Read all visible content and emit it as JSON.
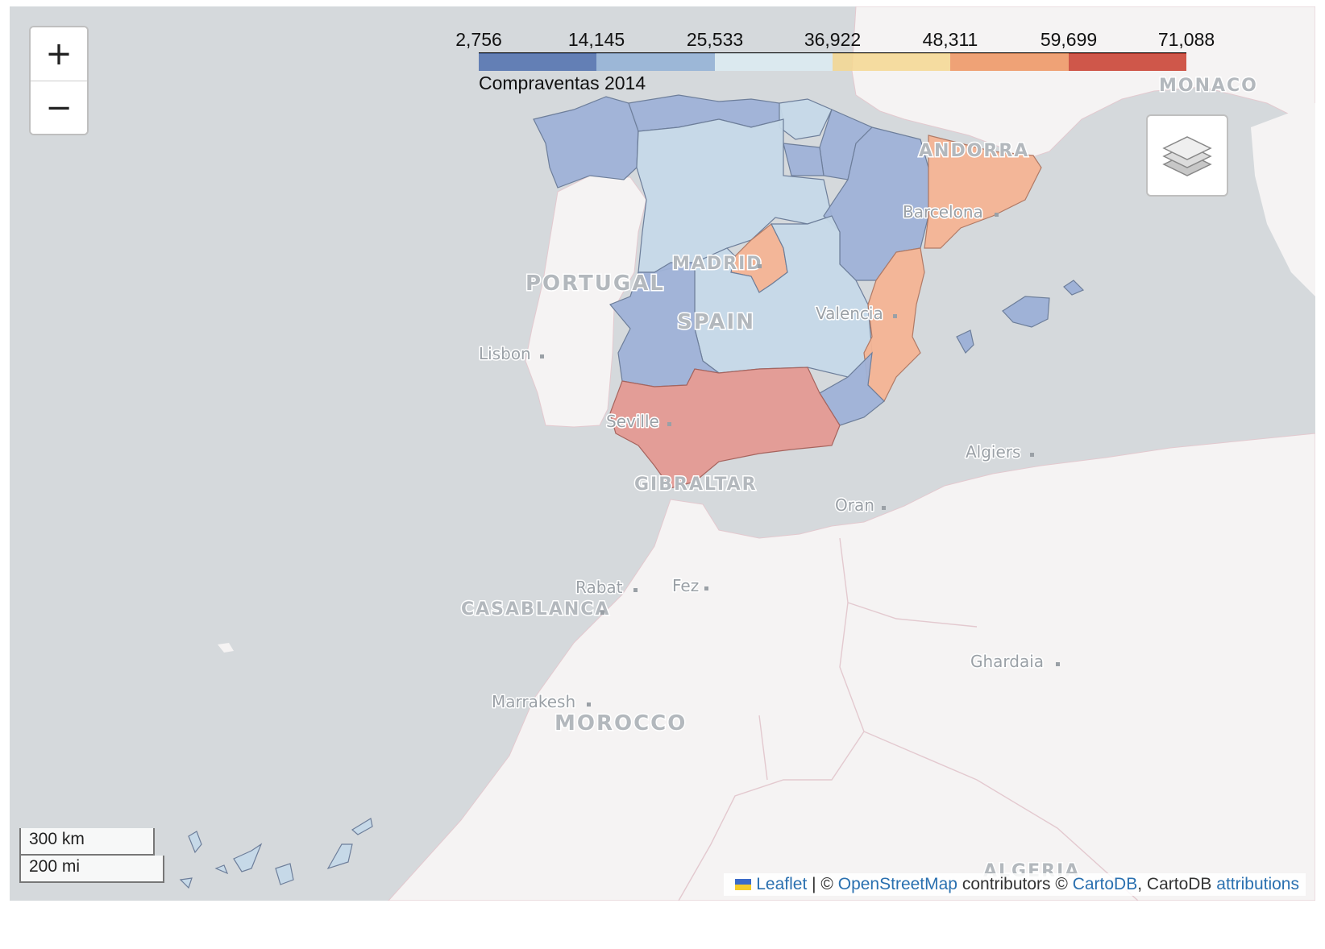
{
  "map": {
    "base_colors": {
      "sea": "#d5d9dc",
      "land": "#f5f3f3",
      "border": "#e3c9cf"
    },
    "countries": [
      {
        "id": "portugal",
        "label": "PORTUGAL"
      },
      {
        "id": "spain",
        "label": "SPAIN"
      },
      {
        "id": "morocco",
        "label": "MOROCCO"
      },
      {
        "id": "andorra",
        "label": "ANDORRA"
      },
      {
        "id": "gibraltar",
        "label": "GIBRALTAR"
      },
      {
        "id": "monaco",
        "label": "MONACO"
      },
      {
        "id": "casablanca",
        "label": "CASABLANCA"
      },
      {
        "id": "madrid",
        "label": "MADRID"
      },
      {
        "id": "algeria",
        "label": "ALGERIA"
      }
    ],
    "cities": [
      {
        "id": "lisbon",
        "label": "Lisbon"
      },
      {
        "id": "seville",
        "label": "Seville"
      },
      {
        "id": "valencia",
        "label": "Valencia"
      },
      {
        "id": "barcelona",
        "label": "Barcelona"
      },
      {
        "id": "algiers",
        "label": "Algiers"
      },
      {
        "id": "oran",
        "label": "Oran"
      },
      {
        "id": "rabat",
        "label": "Rabat"
      },
      {
        "id": "fez",
        "label": "Fez"
      },
      {
        "id": "marrakesh",
        "label": "Marrakesh"
      },
      {
        "id": "ghardaia",
        "label": "Ghardaia"
      }
    ],
    "region_colors": {
      "low": "#9fb2d7",
      "lowmid": "#c6d9e8",
      "mid": "#f4b493",
      "high": "#e49a92"
    }
  },
  "controls": {
    "zoom_in": "+",
    "zoom_out": "−",
    "layers_icon": "layers-icon"
  },
  "legend": {
    "ticks": [
      "2,756",
      "14,145",
      "25,533",
      "36,922",
      "48,311",
      "59,699",
      "71,088"
    ],
    "colors": [
      "#4f6fae",
      "#92b0d6",
      "#dcebf2",
      "#f5d790",
      "#ed935f",
      "#c83b2c"
    ],
    "caption": "Compraventas 2014"
  },
  "scale": {
    "km": "300 km",
    "mi": "200 mi"
  },
  "attribution": {
    "leaflet": "Leaflet",
    "sep": " | © ",
    "osm": "OpenStreetMap",
    "contributors": " contributors © ",
    "cartodb": "CartoDB",
    "cartodb_plain": ", CartoDB ",
    "attributions": "attributions"
  }
}
